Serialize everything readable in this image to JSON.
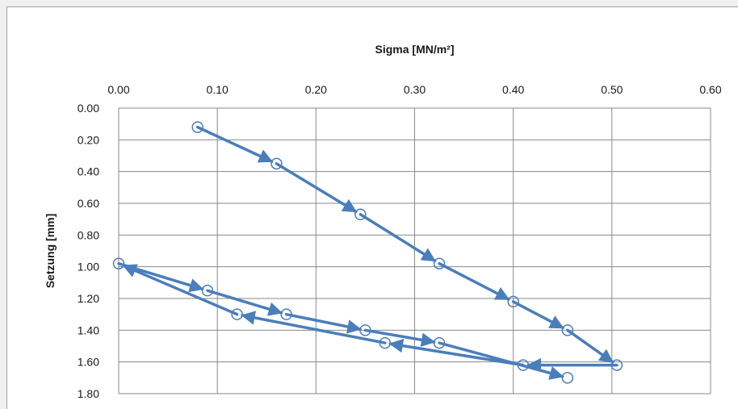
{
  "chart_data": {
    "type": "scatter",
    "title": "",
    "xlabel": "Sigma [MN/m²]",
    "ylabel": "Setzung [mm]",
    "x_axis_position": "top",
    "y_axis_inverted": true,
    "xlim": [
      0,
      0.6
    ],
    "ylim": [
      0,
      1.8
    ],
    "x_ticks": [
      "0.00",
      "0.10",
      "0.20",
      "0.30",
      "0.40",
      "0.50",
      "0.60"
    ],
    "y_ticks": [
      "0.00",
      "0.20",
      "0.40",
      "0.60",
      "0.80",
      "1.00",
      "1.20",
      "1.40",
      "1.60",
      "1.80"
    ],
    "grid": true,
    "legend": false,
    "line_color": "#4a7ebb",
    "series": [
      {
        "marker": "open-circle",
        "arrows": true,
        "points": [
          {
            "x": 0.08,
            "y": 0.12
          },
          {
            "x": 0.16,
            "y": 0.35
          },
          {
            "x": 0.245,
            "y": 0.67
          },
          {
            "x": 0.325,
            "y": 0.98
          },
          {
            "x": 0.4,
            "y": 1.22
          },
          {
            "x": 0.455,
            "y": 1.4
          },
          {
            "x": 0.505,
            "y": 1.62
          },
          {
            "x": 0.41,
            "y": 1.62
          },
          {
            "x": 0.27,
            "y": 1.48
          },
          {
            "x": 0.12,
            "y": 1.3
          },
          {
            "x": 0.0,
            "y": 0.98
          },
          {
            "x": 0.09,
            "y": 1.15
          },
          {
            "x": 0.17,
            "y": 1.3
          },
          {
            "x": 0.25,
            "y": 1.4
          },
          {
            "x": 0.325,
            "y": 1.48
          },
          {
            "x": 0.455,
            "y": 1.7
          }
        ]
      }
    ]
  }
}
